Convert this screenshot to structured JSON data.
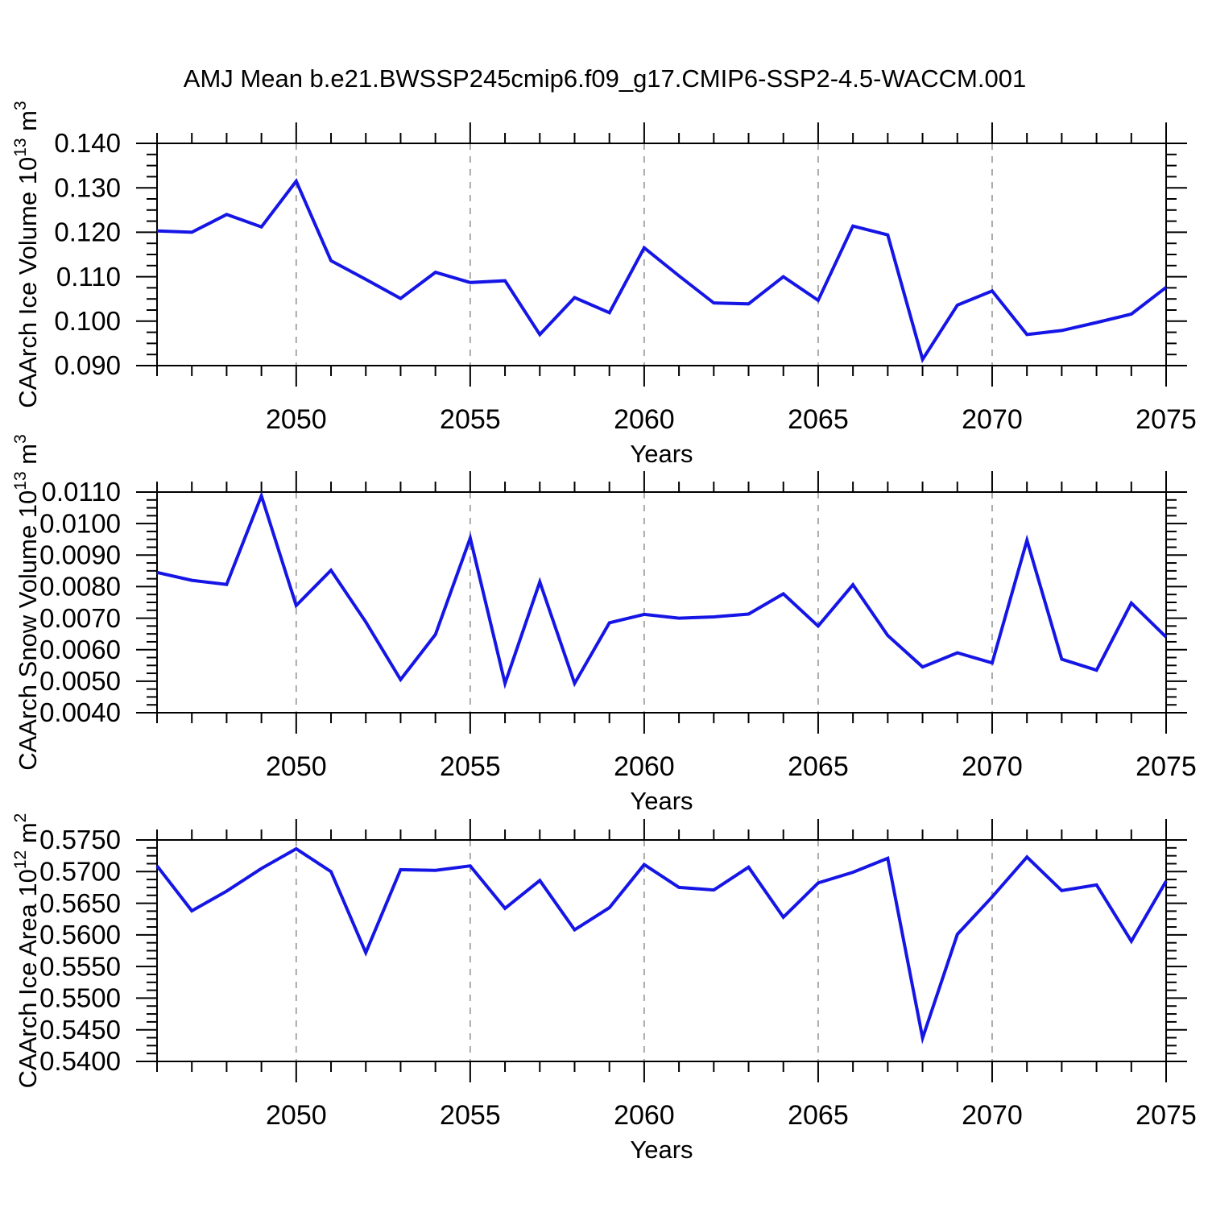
{
  "title": "AMJ Mean b.e21.BWSSP245cmip6.f09_g17.CMIP6-SSP2-4.5-WACCM.001",
  "style": {
    "line_color": "#1515E6",
    "grid_color": "#aaaaaa",
    "axis_color": "#000000",
    "background": "#ffffff"
  },
  "chart_data": [
    {
      "id": "ice-volume",
      "type": "line",
      "ylabel": "CAArch Ice Volume 10^13^ m^3^",
      "xlabel": "Years",
      "x": [
        2046,
        2047,
        2048,
        2049,
        2050,
        2051,
        2052,
        2053,
        2054,
        2055,
        2056,
        2057,
        2058,
        2059,
        2060,
        2061,
        2062,
        2063,
        2064,
        2065,
        2066,
        2067,
        2068,
        2069,
        2070,
        2071,
        2072,
        2073,
        2074,
        2075
      ],
      "values": [
        0.1203,
        0.12,
        0.124,
        0.1212,
        0.1315,
        0.1136,
        0.1094,
        0.1051,
        0.111,
        0.1087,
        0.1091,
        0.097,
        0.1053,
        0.1019,
        0.1165,
        0.1102,
        0.1041,
        0.1039,
        0.11,
        0.1047,
        0.1214,
        0.1194,
        0.0914,
        0.1036,
        0.1068,
        0.097,
        0.0979,
        0.0997,
        0.1016,
        0.1076
      ],
      "xlim": [
        2046,
        2075
      ],
      "ylim": [
        0.09,
        0.14
      ],
      "ytick_values": [
        0.09,
        0.1,
        0.11,
        0.12,
        0.13,
        0.14
      ],
      "ytick_labels": [
        "0.090",
        "0.100",
        "0.110",
        "0.120",
        "0.130",
        "0.140"
      ],
      "yminor_step": 0.0025,
      "xtick_major": [
        2050,
        2055,
        2060,
        2065,
        2070,
        2075
      ],
      "xtick_labels": [
        "2050",
        "2055",
        "2060",
        "2065",
        "2070",
        "2075"
      ],
      "xminor_step": 1,
      "gridlines_x": [
        2050,
        2055,
        2060,
        2065,
        2070
      ],
      "grid_on": true,
      "legend": "none"
    },
    {
      "id": "snow-volume",
      "type": "line",
      "ylabel": "CAArch Snow Volume 10^13^ m^3^",
      "xlabel": "Years",
      "x": [
        2046,
        2047,
        2048,
        2049,
        2050,
        2051,
        2052,
        2053,
        2054,
        2055,
        2056,
        2057,
        2058,
        2059,
        2060,
        2061,
        2062,
        2063,
        2064,
        2065,
        2066,
        2067,
        2068,
        2069,
        2070,
        2071,
        2072,
        2073,
        2074,
        2075
      ],
      "values": [
        0.00845,
        0.0082,
        0.00807,
        0.01088,
        0.0074,
        0.00852,
        0.00688,
        0.00505,
        0.00648,
        0.00954,
        0.00493,
        0.00815,
        0.00493,
        0.00685,
        0.00712,
        0.007,
        0.00704,
        0.00713,
        0.00777,
        0.00675,
        0.00806,
        0.00645,
        0.00545,
        0.0059,
        0.00558,
        0.00947,
        0.0057,
        0.00535,
        0.00748,
        0.0064
      ],
      "xlim": [
        2046,
        2075
      ],
      "ylim": [
        0.004,
        0.011
      ],
      "ytick_values": [
        0.004,
        0.005,
        0.006,
        0.007,
        0.008,
        0.009,
        0.01,
        0.011
      ],
      "ytick_labels": [
        "0.0040",
        "0.0050",
        "0.0060",
        "0.0070",
        "0.0080",
        "0.0090",
        "0.0100",
        "0.0110"
      ],
      "yminor_step": 0.00025,
      "xtick_major": [
        2050,
        2055,
        2060,
        2065,
        2070,
        2075
      ],
      "xtick_labels": [
        "2050",
        "2055",
        "2060",
        "2065",
        "2070",
        "2075"
      ],
      "xminor_step": 1,
      "gridlines_x": [
        2050,
        2055,
        2060,
        2065,
        2070
      ],
      "grid_on": true,
      "legend": "none"
    },
    {
      "id": "ice-area",
      "type": "line",
      "ylabel": "CAArch Ice Area 10^12^ m^2^",
      "xlabel": "Years",
      "x": [
        2046,
        2047,
        2048,
        2049,
        2050,
        2051,
        2052,
        2053,
        2054,
        2055,
        2056,
        2057,
        2058,
        2059,
        2060,
        2061,
        2062,
        2063,
        2064,
        2065,
        2066,
        2067,
        2068,
        2069,
        2070,
        2071,
        2072,
        2073,
        2074,
        2075
      ],
      "values": [
        0.5709,
        0.5638,
        0.5669,
        0.5705,
        0.5736,
        0.57,
        0.5572,
        0.5703,
        0.5702,
        0.5709,
        0.5642,
        0.5686,
        0.5608,
        0.5643,
        0.5711,
        0.5675,
        0.5671,
        0.5707,
        0.5628,
        0.5682,
        0.5699,
        0.5721,
        0.5437,
        0.5601,
        0.566,
        0.5723,
        0.567,
        0.5679,
        0.559,
        0.5685
      ],
      "xlim": [
        2046,
        2075
      ],
      "ylim": [
        0.54,
        0.575
      ],
      "ytick_values": [
        0.54,
        0.545,
        0.55,
        0.555,
        0.56,
        0.565,
        0.57,
        0.575
      ],
      "ytick_labels": [
        "0.5400",
        "0.5450",
        "0.5500",
        "0.5550",
        "0.5600",
        "0.5650",
        "0.5700",
        "0.5750"
      ],
      "yminor_step": 0.00125,
      "xtick_major": [
        2050,
        2055,
        2060,
        2065,
        2070,
        2075
      ],
      "xtick_labels": [
        "2050",
        "2055",
        "2060",
        "2065",
        "2070",
        "2075"
      ],
      "xminor_step": 1,
      "gridlines_x": [
        2050,
        2055,
        2060,
        2065,
        2070
      ],
      "grid_on": true,
      "legend": "none"
    }
  ]
}
